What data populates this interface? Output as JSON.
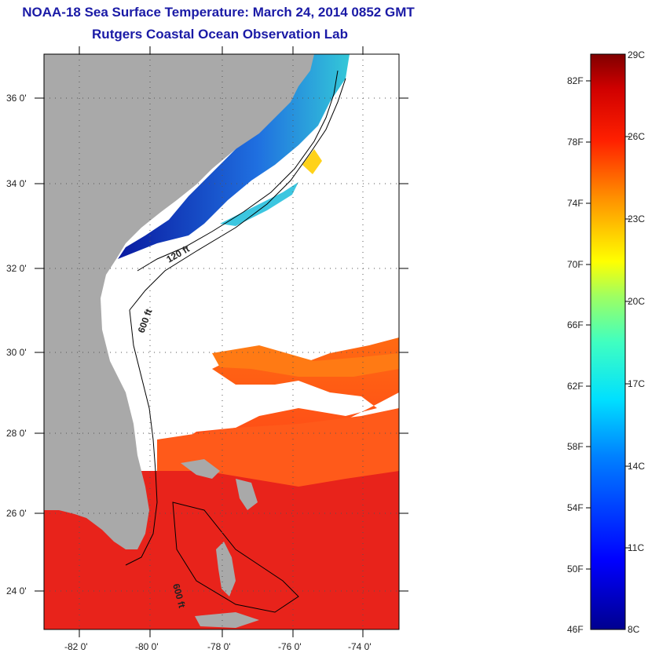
{
  "title": {
    "line1": "NOAA-18 Sea Surface Temperature:  March 24, 2014 0852 GMT",
    "line2": "Rutgers Coastal Ocean Observation Lab"
  },
  "map": {
    "lat_labels": [
      "36 0'",
      "34 0'",
      "32 0'",
      "30 0'",
      "28 0'",
      "26 0'",
      "24 0'"
    ],
    "lon_labels": [
      "-82 0'",
      "-80 0'",
      "-78 0'",
      "-76 0'",
      "-74 0'"
    ],
    "contour_labels": [
      "120 ft",
      "600 ft",
      "600 ft"
    ],
    "colors": {
      "land": "#a9a9a9",
      "cloud": "#ffffff",
      "warm": "#e8231b",
      "hot": "#ff3d1e",
      "cold": "#0a2cc8",
      "very_cold": "#00108f"
    }
  },
  "colorbar": {
    "fahrenheit_labels": [
      "82F",
      "78F",
      "74F",
      "70F",
      "66F",
      "62F",
      "58F",
      "54F",
      "50F",
      "46F"
    ],
    "celsius_labels": [
      "29C",
      "26C",
      "23C",
      "20C",
      "17C",
      "14C",
      "11C",
      "8C"
    ]
  }
}
